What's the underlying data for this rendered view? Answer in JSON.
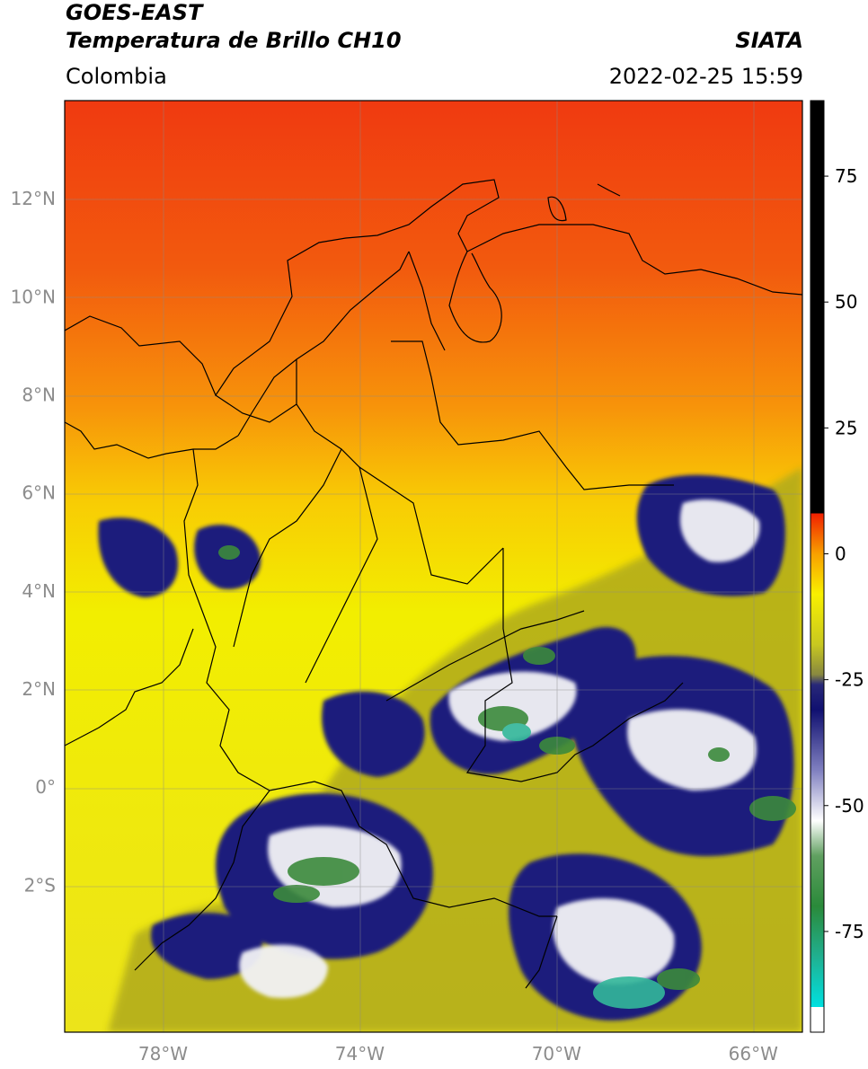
{
  "header": {
    "satellite": "GOES-EAST",
    "product": "Temperatura de Brillo CH10",
    "agency": "SIATA",
    "region": "Colombia",
    "datetime": "2022-02-25 15:59"
  },
  "map": {
    "extent": {
      "lon": [
        -80,
        -65
      ],
      "lat": [
        -5,
        14
      ]
    },
    "lat_ticks": [
      {
        "value": 12,
        "label": "12°N"
      },
      {
        "value": 10,
        "label": "10°N"
      },
      {
        "value": 8,
        "label": "8°N"
      },
      {
        "value": 6,
        "label": "6°N"
      },
      {
        "value": 4,
        "label": "4°N"
      },
      {
        "value": 2,
        "label": "2°N"
      },
      {
        "value": 0,
        "label": "0°"
      },
      {
        "value": -2,
        "label": "2°S"
      }
    ],
    "lon_ticks": [
      {
        "value": -78,
        "label": "78°W"
      },
      {
        "value": -74,
        "label": "74°W"
      },
      {
        "value": -70,
        "label": "70°W"
      },
      {
        "value": -66,
        "label": "66°W"
      }
    ],
    "grid": true,
    "colors": {
      "warm": "#f04010",
      "mid": "#f8a000",
      "cool": "#f0e800",
      "cloud_olive": "#a8a418",
      "cloud_navy": "#1a1a7a",
      "cloud_white": "#f4f4f4",
      "cloud_green": "#3c8a3c",
      "cloud_teal": "#33b89a"
    }
  },
  "colorbar": {
    "range": [
      -95,
      90
    ],
    "ticks": [
      {
        "value": 75,
        "label": "75"
      },
      {
        "value": 50,
        "label": "50"
      },
      {
        "value": 25,
        "label": "25"
      },
      {
        "value": 0,
        "label": "0"
      },
      {
        "value": -25,
        "label": "-25"
      },
      {
        "value": -50,
        "label": "-50"
      },
      {
        "value": -75,
        "label": "-75"
      }
    ],
    "stops": [
      {
        "value": -95,
        "color": "#ffffff"
      },
      {
        "value": -90,
        "color": "#ffffff"
      },
      {
        "value": -90,
        "color": "#00e0e0"
      },
      {
        "value": -80,
        "color": "#20b090"
      },
      {
        "value": -70,
        "color": "#2a8a3a"
      },
      {
        "value": -60,
        "color": "#60a060"
      },
      {
        "value": -53,
        "color": "#ffffff"
      },
      {
        "value": -43,
        "color": "#8080c0"
      },
      {
        "value": -31,
        "color": "#101070"
      },
      {
        "value": -26,
        "color": "#282878"
      },
      {
        "value": -24,
        "color": "#888840"
      },
      {
        "value": -18,
        "color": "#c8c820"
      },
      {
        "value": -8,
        "color": "#f8f000"
      },
      {
        "value": 0,
        "color": "#f8a000"
      },
      {
        "value": 8,
        "color": "#f02000"
      },
      {
        "value": 8,
        "color": "#000000"
      },
      {
        "value": 90,
        "color": "#000000"
      }
    ]
  }
}
